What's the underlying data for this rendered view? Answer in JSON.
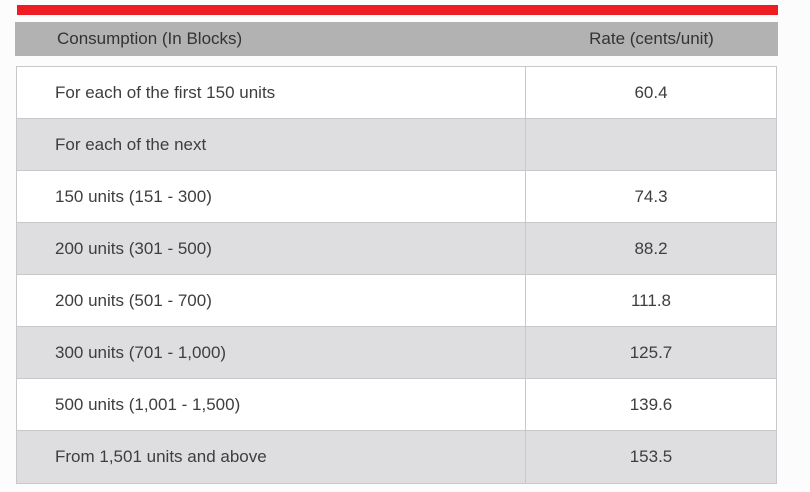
{
  "page": {
    "background": "#fcfcfc"
  },
  "accent_bar": {
    "color": "#ee1c23"
  },
  "table": {
    "colors": {
      "header_background": "#b2b2b2",
      "header_text": "#333333",
      "row_white": "#ffffff",
      "row_alt": "#dedde0",
      "border": "#c9c7c9",
      "body_text": "#3e3e3e"
    },
    "header": {
      "consumption_label": "Consumption (In Blocks)",
      "rate_label": "Rate (cents/unit)"
    },
    "rows": [
      {
        "consumption": "For each of the first 150 units",
        "rate": "60.4"
      },
      {
        "consumption": "For each of the next",
        "rate": ""
      },
      {
        "consumption": "150 units (151 - 300)",
        "rate": "74.3"
      },
      {
        "consumption": "200 units (301 - 500)",
        "rate": "88.2"
      },
      {
        "consumption": "200 units (501 - 700)",
        "rate": "111.8"
      },
      {
        "consumption": "300 units (701 - 1,000)",
        "rate": "125.7"
      },
      {
        "consumption": "500 units (1,001 - 1,500)",
        "rate": "139.6"
      },
      {
        "consumption": "From 1,501 units and above",
        "rate": "153.5"
      }
    ]
  }
}
